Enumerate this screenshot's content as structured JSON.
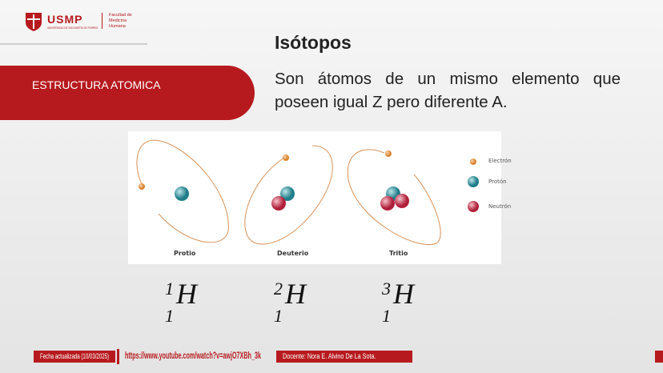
{
  "header": {
    "logo_text": "USMP",
    "logo_sub": "UNIVERSIDAD DE SAN MARTIN DE PORRES",
    "faculty": "Facultad de Medicina Humana"
  },
  "banner": {
    "label": "ESTRUCTURA ATOMICA"
  },
  "slide": {
    "title": "Isótopos",
    "description": "Son átomos de un mismo elemento que poseen igual Z pero diferente A."
  },
  "figure": {
    "isotopes": [
      "Protio",
      "Deuterio",
      "Tritio"
    ],
    "legend": [
      "Electrón",
      "Protón",
      "Neutrón"
    ],
    "colors": {
      "electron": "#e8954a",
      "proton": "#2b8a96",
      "neutron": "#c2283f",
      "orbit": "#d9915a"
    }
  },
  "notation": [
    {
      "mass": "1",
      "symbol": "H",
      "atomic": "1"
    },
    {
      "mass": "2",
      "symbol": "H",
      "atomic": "1"
    },
    {
      "mass": "3",
      "symbol": "H",
      "atomic": "1"
    }
  ],
  "footer": {
    "date": "Fecha actualizada (10/03/2025)",
    "url": "https://www.youtube.com/watch?v=awjO7XBh_3k",
    "teacher": "Docente: Nora E. Alvino De La Sota."
  },
  "brand_color": "#b71a1e"
}
